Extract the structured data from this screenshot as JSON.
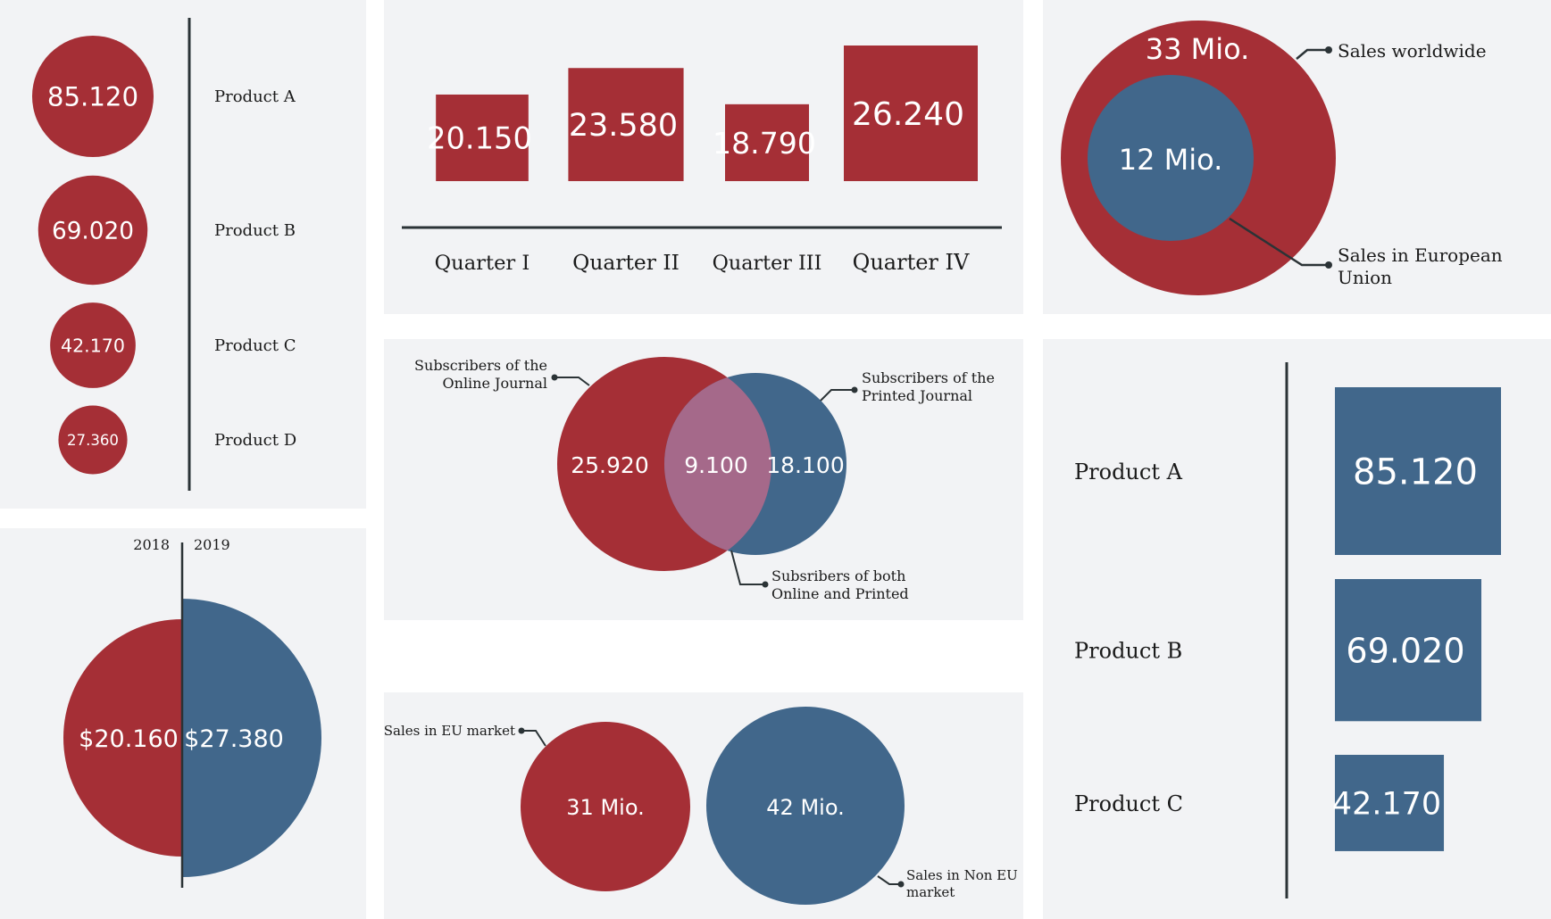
{
  "colors": {
    "red": "#a52f36",
    "blue": "#41678b",
    "overlap": "#a5698a",
    "panel": "#f2f3f5",
    "line": "#2b3336"
  },
  "chart_data": [
    {
      "type": "bubble",
      "categories": [
        "Product A",
        "Product B",
        "Product C",
        "Product D"
      ],
      "values": [
        85120,
        69020,
        42170,
        27360
      ],
      "value_labels": [
        "85.120",
        "69.020",
        "42.170",
        "27.360"
      ]
    },
    {
      "type": "bar",
      "categories": [
        "Quarter I",
        "Quarter II",
        "Quarter III",
        "Quarter IV"
      ],
      "values": [
        20150,
        23580,
        18790,
        26240
      ],
      "value_labels": [
        "20.150",
        "23.580",
        "18.790",
        "26.240"
      ]
    },
    {
      "type": "nested-circle",
      "series": [
        {
          "name": "Sales worldwide",
          "value_label": "33 Mio.",
          "value": 33
        },
        {
          "name": "Sales in European Union",
          "value_label": "12 Mio.",
          "value": 12
        }
      ],
      "unit": "Mio."
    },
    {
      "type": "venn",
      "sets": [
        {
          "name": "Subscribers of the Online Journal",
          "value_label": "25.920",
          "value": 25920
        },
        {
          "name": "Subscribers of the Printed Journal",
          "value_label": "18.100",
          "value": 18100
        }
      ],
      "intersection": {
        "name": "Subsribers of both Online and Printed",
        "value_label": "9.100",
        "value": 9100
      }
    },
    {
      "type": "half-circle",
      "categories": [
        "2018",
        "2019"
      ],
      "values": [
        20160,
        27380
      ],
      "value_labels": [
        "$20.160",
        "$27.380"
      ]
    },
    {
      "type": "bubble",
      "categories": [
        "Sales in EU market",
        "Sales in Non EU market"
      ],
      "values": [
        31,
        42
      ],
      "value_labels": [
        "31 Mio.",
        "42 Mio."
      ]
    },
    {
      "type": "bar",
      "orientation": "square",
      "categories": [
        "Product A",
        "Product B",
        "Product C"
      ],
      "values": [
        85120,
        69020,
        42170
      ],
      "value_labels": [
        "85.120",
        "69.020",
        "42.170"
      ]
    }
  ],
  "texts": {
    "nested_outer_label": "Sales worldwide",
    "nested_inner_label_1": "Sales in European",
    "nested_inner_label_2": "Union",
    "venn_left_1": "Subscribers of the",
    "venn_left_2": "Online Journal",
    "venn_right_1": "Subscribers of the",
    "venn_right_2": "Printed Journal",
    "venn_both_1": "Subsribers of both",
    "venn_both_2": "Online and Printed",
    "eu_label": "Sales in EU market",
    "noneu_label_1": "Sales in Non EU",
    "noneu_label_2": "market"
  }
}
